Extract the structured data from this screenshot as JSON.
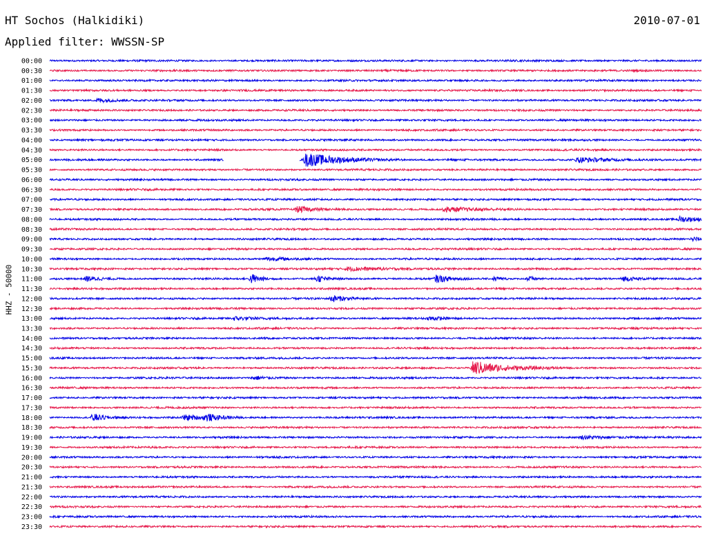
{
  "header": {
    "station": "HT Sochos (Halkidiki)",
    "date": "2010-07-01",
    "filter": "Applied filter: WWSSN-SP"
  },
  "chart_data": {
    "type": "line",
    "title": "HT Sochos (Halkidiki)",
    "ylabel": "HHZ - 50000",
    "xlabel": "",
    "row_labels": [
      "00:00",
      "00:30",
      "01:00",
      "01:30",
      "02:00",
      "02:30",
      "03:00",
      "03:30",
      "04:00",
      "04:30",
      "05:00",
      "05:30",
      "06:00",
      "06:30",
      "07:00",
      "07:30",
      "08:00",
      "08:30",
      "09:00",
      "09:30",
      "10:00",
      "10:30",
      "11:00",
      "11:30",
      "12:00",
      "12:30",
      "13:00",
      "13:30",
      "14:00",
      "14:30",
      "15:00",
      "15:30",
      "16:00",
      "16:30",
      "17:00",
      "17:30",
      "18:00",
      "18:30",
      "19:00",
      "19:30",
      "20:00",
      "20:30",
      "21:00",
      "21:30",
      "22:00",
      "22:30",
      "23:00",
      "23:30"
    ],
    "colors": {
      "even_rows": "#0000e6",
      "odd_rows": "#e6194b"
    },
    "minutes_per_row": 30,
    "gap": {
      "row": "05:00",
      "from_minute": 8,
      "to_minute": 11.5
    },
    "events": [
      {
        "row": "02:00",
        "minute": 2.2,
        "amp": 0.45,
        "dur": 0.8
      },
      {
        "row": "05:00",
        "minute": 11.8,
        "amp": 1.4,
        "dur": 1.5
      },
      {
        "row": "05:00",
        "minute": 24.3,
        "amp": 0.5,
        "dur": 1.4
      },
      {
        "row": "07:30",
        "minute": 11.4,
        "amp": 0.55,
        "dur": 0.9
      },
      {
        "row": "07:30",
        "minute": 18.2,
        "amp": 0.5,
        "dur": 1.2
      },
      {
        "row": "08:00",
        "minute": 29.0,
        "amp": 0.5,
        "dur": 1.0
      },
      {
        "row": "09:00",
        "minute": 29.6,
        "amp": 0.45,
        "dur": 0.4
      },
      {
        "row": "10:00",
        "minute": 10.0,
        "amp": 0.35,
        "dur": 1.0
      },
      {
        "row": "10:30",
        "minute": 13.7,
        "amp": 0.35,
        "dur": 1.8
      },
      {
        "row": "11:00",
        "minute": 1.7,
        "amp": 0.5,
        "dur": 0.6
      },
      {
        "row": "11:00",
        "minute": 9.3,
        "amp": 1.0,
        "dur": 0.4
      },
      {
        "row": "11:00",
        "minute": 12.3,
        "amp": 0.7,
        "dur": 0.4
      },
      {
        "row": "11:00",
        "minute": 17.8,
        "amp": 0.7,
        "dur": 0.6
      },
      {
        "row": "11:00",
        "minute": 20.5,
        "amp": 0.5,
        "dur": 0.3
      },
      {
        "row": "11:00",
        "minute": 22.0,
        "amp": 0.6,
        "dur": 0.3
      },
      {
        "row": "11:00",
        "minute": 26.4,
        "amp": 0.45,
        "dur": 0.6
      },
      {
        "row": "12:00",
        "minute": 13.0,
        "amp": 0.65,
        "dur": 0.7
      },
      {
        "row": "13:00",
        "minute": 8.5,
        "amp": 0.35,
        "dur": 1.0
      },
      {
        "row": "13:00",
        "minute": 17.5,
        "amp": 0.35,
        "dur": 0.6
      },
      {
        "row": "15:30",
        "minute": 19.5,
        "amp": 1.5,
        "dur": 1.3
      },
      {
        "row": "16:00",
        "minute": 9.4,
        "amp": 0.45,
        "dur": 0.5
      },
      {
        "row": "18:00",
        "minute": 2.0,
        "amp": 0.8,
        "dur": 0.5
      },
      {
        "row": "18:00",
        "minute": 6.2,
        "amp": 0.55,
        "dur": 0.9
      },
      {
        "row": "18:00",
        "minute": 7.2,
        "amp": 0.6,
        "dur": 0.6
      },
      {
        "row": "19:00",
        "minute": 24.5,
        "amp": 0.3,
        "dur": 1.5
      }
    ]
  }
}
